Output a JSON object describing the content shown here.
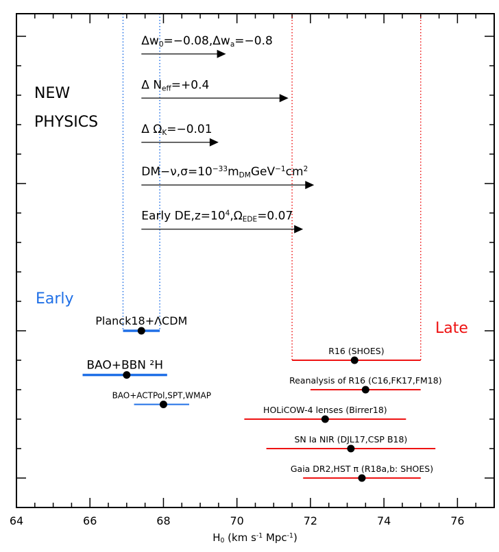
{
  "chart_data": {
    "type": "errorbar",
    "xlabel": [
      [
        "H",
        ""
      ],
      [
        "0",
        "sub"
      ],
      [
        " (km s",
        ""
      ],
      [
        "-1",
        "sup"
      ],
      [
        " Mpc",
        ""
      ],
      [
        "-1",
        "sup"
      ],
      [
        ")",
        ""
      ]
    ],
    "xlim": [
      64,
      77
    ],
    "xticks": [
      "64",
      "66",
      "68",
      "70",
      "72",
      "74",
      "76"
    ],
    "xtick_values": [
      64,
      66,
      68,
      70,
      72,
      74,
      76
    ],
    "grid": false,
    "colors": {
      "early": "#1f6fe6",
      "late": "#ee1111",
      "arrow": "#000000",
      "point": "#000000"
    },
    "group_labels": {
      "early": "Early",
      "late": "Late",
      "new_physics": [
        "NEW",
        "PHYSICS"
      ]
    },
    "early": [
      {
        "label": "Planck18+ΛCDM",
        "value": 67.4,
        "low": 66.9,
        "high": 67.9
      },
      {
        "label": "BAO+BBN ²H",
        "value": 67.0,
        "low": 65.8,
        "high": 68.1
      },
      {
        "label": "BAO+ACTPol,SPT,WMAP",
        "value": 68.0,
        "low": 67.2,
        "high": 68.7
      }
    ],
    "late": [
      {
        "label": "R16 (SHOES)",
        "value": 73.2,
        "low": 71.5,
        "high": 75.0
      },
      {
        "label": "Reanalysis of R16 (C16,FK17,FM18)",
        "value": 73.5,
        "low": 72.0,
        "high": 75.0
      },
      {
        "label": "HOLiCOW-4 lenses (Birrer18)",
        "value": 72.4,
        "low": 70.2,
        "high": 74.6
      },
      {
        "label": "SN Ia NIR (DJL17,CSP B18)",
        "value": 73.1,
        "low": 70.8,
        "high": 75.4
      },
      {
        "label": "Gaia DR2,HST π (R18a,b: SHOES)",
        "value": 73.4,
        "low": 71.8,
        "high": 75.0
      }
    ],
    "early_band": [
      66.9,
      67.9
    ],
    "late_band": [
      71.5,
      75.0
    ],
    "new_physics": [
      {
        "segments": [
          [
            "Δw",
            ""
          ],
          [
            "0",
            "sub"
          ],
          [
            "=−0.08,Δw",
            ""
          ],
          [
            "a",
            "sub"
          ],
          [
            "=−0.8",
            ""
          ]
        ],
        "from": 67.4,
        "to": 69.7
      },
      {
        "segments": [
          [
            "Δ  N",
            ""
          ],
          [
            "eff",
            "sub"
          ],
          [
            "=+0.4",
            ""
          ]
        ],
        "from": 67.4,
        "to": 71.4
      },
      {
        "segments": [
          [
            "Δ  Ω",
            ""
          ],
          [
            "K",
            "sub"
          ],
          [
            "=−0.01",
            ""
          ]
        ],
        "from": 67.4,
        "to": 69.5
      },
      {
        "segments": [
          [
            "DM−ν,σ=10",
            ""
          ],
          [
            "−33",
            "sup"
          ],
          [
            "m",
            ""
          ],
          [
            "DM",
            "sub"
          ],
          [
            "GeV",
            ""
          ],
          [
            "−1",
            "sup"
          ],
          [
            "cm",
            ""
          ],
          [
            "2",
            "sup"
          ]
        ],
        "from": 67.4,
        "to": 72.1
      },
      {
        "segments": [
          [
            "Early DE,z=10",
            ""
          ],
          [
            "4",
            "sup"
          ],
          [
            ",Ω",
            ""
          ],
          [
            "EDE",
            "sub"
          ],
          [
            "=0.07",
            ""
          ]
        ],
        "from": 67.4,
        "to": 71.8
      }
    ]
  }
}
